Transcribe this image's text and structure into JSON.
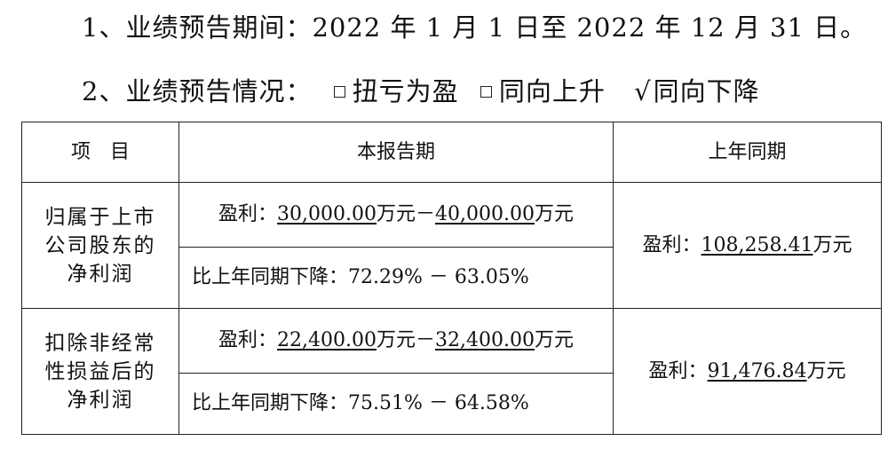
{
  "line1": {
    "prefix": "1、业绩预告期间：",
    "text": "2022 年 1 月 1 日至 2022 年 12 月 31 日。"
  },
  "line2": {
    "prefix": "2、业绩预告情况：",
    "option1": "扭亏为盈",
    "option2": "同向上升",
    "check_mark": "√",
    "option3": "同向下降"
  },
  "table": {
    "headers": [
      "项　目",
      "本报告期",
      "上年同期"
    ],
    "rows": [
      {
        "label": "归属于上市公司股东的净利润",
        "label_lines": [
          "归属于上市",
          "公司股东的",
          "净利润"
        ],
        "current_profit": {
          "prefix": "盈利：",
          "low": "30,000.00",
          "mid": "万元－",
          "high": "40,000.00",
          "suffix": "万元"
        },
        "current_change": "比上年同期下降：72.29% － 63.05%",
        "prior": {
          "prefix": "盈利：",
          "value": "108,258.41",
          "suffix": "万元"
        }
      },
      {
        "label": "扣除非经常性损益后的净利润",
        "label_lines": [
          "扣除非经常",
          "性损益后的",
          "净利润"
        ],
        "current_profit": {
          "prefix": "盈利：",
          "low": "22,400.00",
          "mid": "万元－",
          "high": "32,400.00",
          "suffix": "万元"
        },
        "current_change": "比上年同期下降：75.51% － 64.58%",
        "prior": {
          "prefix": "盈利：",
          "value": "91,476.84",
          "suffix": "万元"
        }
      }
    ]
  }
}
